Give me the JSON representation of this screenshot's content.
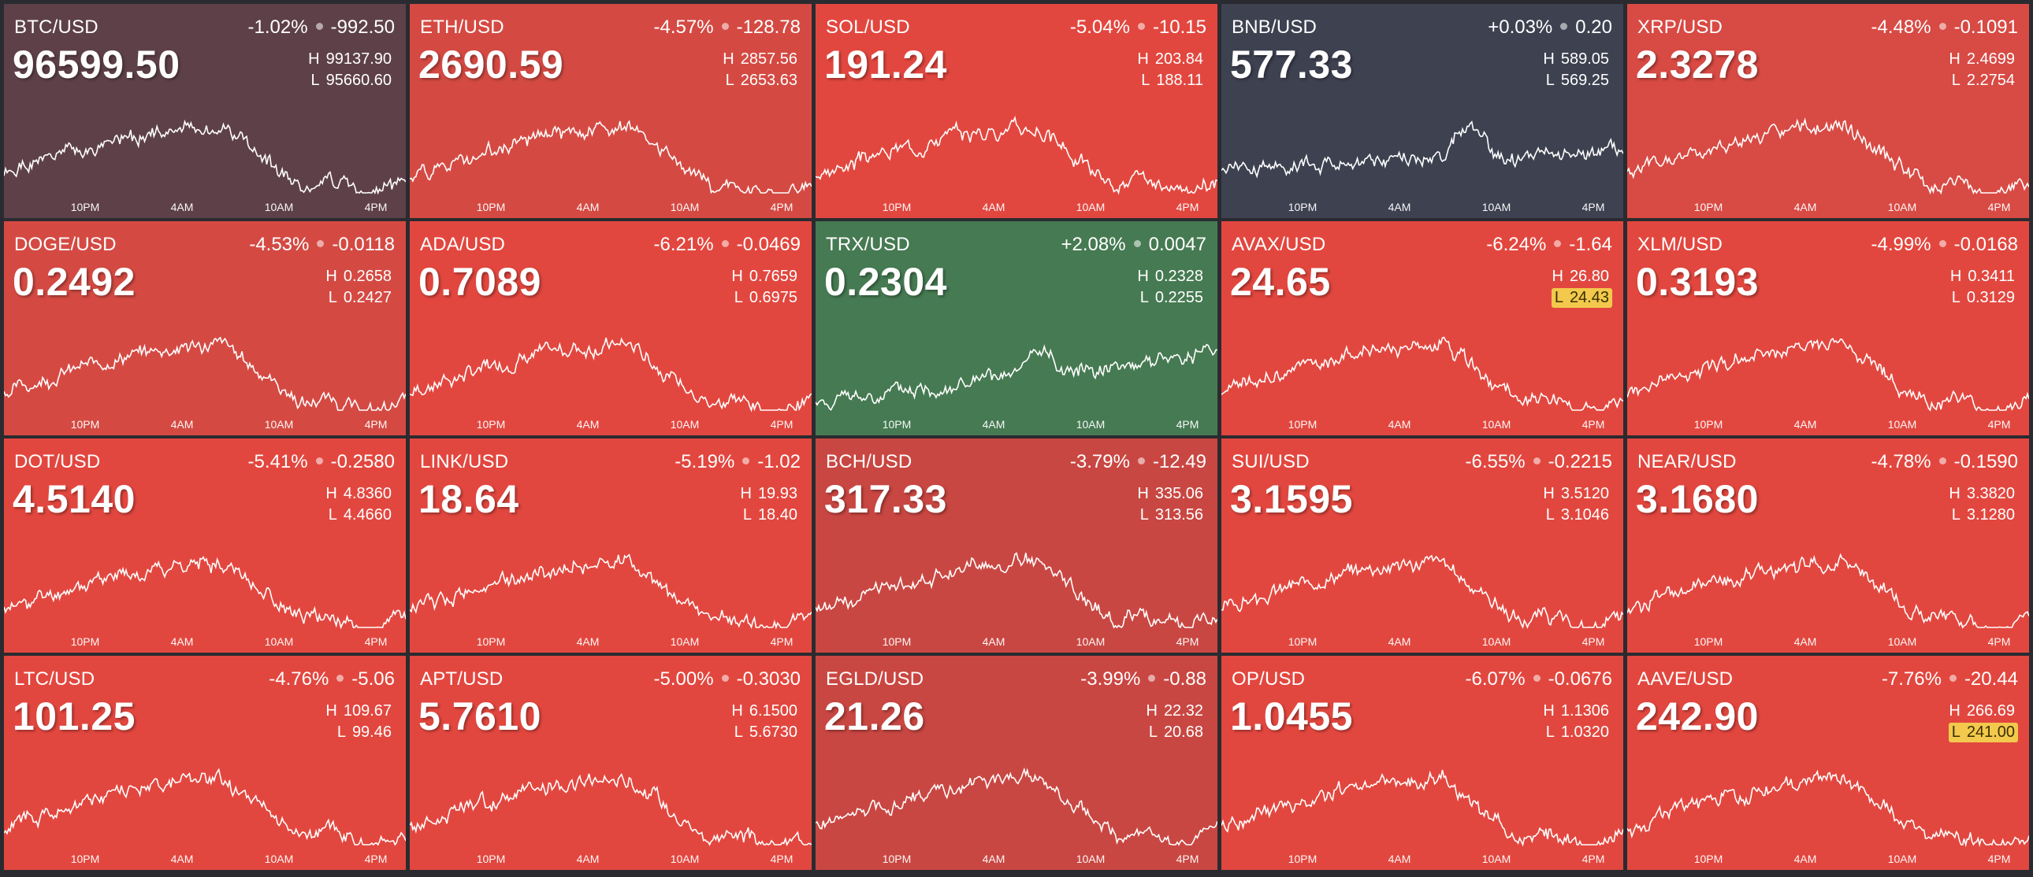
{
  "time_axis": [
    "10PM",
    "4AM",
    "10AM",
    "4PM"
  ],
  "colors": {
    "strong_down": "#e2473f",
    "moderate_down": "#c94742",
    "slight_down": "#5e4148",
    "flat": "#3e4150",
    "up": "#467a52",
    "low_flag": "#f2c94c"
  },
  "tiles": [
    {
      "pair": "BTC/USD",
      "change_pct": "-1.02%",
      "change_abs": "-992.50",
      "price": "96599.50",
      "high": "99137.90",
      "low": "95660.60",
      "color": "#5e4148",
      "low_flag": false,
      "trend": "hump",
      "seed": 1
    },
    {
      "pair": "ETH/USD",
      "change_pct": "-4.57%",
      "change_abs": "-128.78",
      "price": "2690.59",
      "high": "2857.56",
      "low": "2653.63",
      "color": "#d44a43",
      "low_flag": false,
      "trend": "hump",
      "seed": 2
    },
    {
      "pair": "SOL/USD",
      "change_pct": "-5.04%",
      "change_abs": "-10.15",
      "price": "191.24",
      "high": "203.84",
      "low": "188.11",
      "color": "#e2473f",
      "low_flag": false,
      "trend": "hump",
      "seed": 3
    },
    {
      "pair": "BNB/USD",
      "change_pct": "+0.03%",
      "change_abs": "0.20",
      "price": "577.33",
      "high": "589.05",
      "low": "569.25",
      "color": "#3e4150",
      "low_flag": false,
      "trend": "spike",
      "seed": 4
    },
    {
      "pair": "XRP/USD",
      "change_pct": "-4.48%",
      "change_abs": "-0.1091",
      "price": "2.3278",
      "high": "2.4699",
      "low": "2.2754",
      "color": "#d84a44",
      "low_flag": false,
      "trend": "hump",
      "seed": 5
    },
    {
      "pair": "DOGE/USD",
      "change_pct": "-4.53%",
      "change_abs": "-0.0118",
      "price": "0.2492",
      "high": "0.2658",
      "low": "0.2427",
      "color": "#d44a43",
      "low_flag": false,
      "trend": "hump",
      "seed": 6
    },
    {
      "pair": "ADA/USD",
      "change_pct": "-6.21%",
      "change_abs": "-0.0469",
      "price": "0.7089",
      "high": "0.7659",
      "low": "0.6975",
      "color": "#e2473f",
      "low_flag": false,
      "trend": "hump",
      "seed": 7
    },
    {
      "pair": "TRX/USD",
      "change_pct": "+2.08%",
      "change_abs": "0.0047",
      "price": "0.2304",
      "high": "0.2328",
      "low": "0.2255",
      "color": "#467a52",
      "low_flag": false,
      "trend": "rise",
      "seed": 8
    },
    {
      "pair": "AVAX/USD",
      "change_pct": "-6.24%",
      "change_abs": "-1.64",
      "price": "24.65",
      "high": "26.80",
      "low": "24.43",
      "color": "#e2473f",
      "low_flag": true,
      "trend": "hump",
      "seed": 9
    },
    {
      "pair": "XLM/USD",
      "change_pct": "-4.99%",
      "change_abs": "-0.0168",
      "price": "0.3193",
      "high": "0.3411",
      "low": "0.3129",
      "color": "#e2473f",
      "low_flag": false,
      "trend": "hump",
      "seed": 10
    },
    {
      "pair": "DOT/USD",
      "change_pct": "-5.41%",
      "change_abs": "-0.2580",
      "price": "4.5140",
      "high": "4.8360",
      "low": "4.4660",
      "color": "#e2473f",
      "low_flag": false,
      "trend": "hump",
      "seed": 11
    },
    {
      "pair": "LINK/USD",
      "change_pct": "-5.19%",
      "change_abs": "-1.02",
      "price": "18.64",
      "high": "19.93",
      "low": "18.40",
      "color": "#e2473f",
      "low_flag": false,
      "trend": "hump",
      "seed": 12
    },
    {
      "pair": "BCH/USD",
      "change_pct": "-3.79%",
      "change_abs": "-12.49",
      "price": "317.33",
      "high": "335.06",
      "low": "313.56",
      "color": "#c94742",
      "low_flag": false,
      "trend": "hump",
      "seed": 13
    },
    {
      "pair": "SUI/USD",
      "change_pct": "-6.55%",
      "change_abs": "-0.2215",
      "price": "3.1595",
      "high": "3.5120",
      "low": "3.1046",
      "color": "#e2473f",
      "low_flag": false,
      "trend": "hump",
      "seed": 14
    },
    {
      "pair": "NEAR/USD",
      "change_pct": "-4.78%",
      "change_abs": "-0.1590",
      "price": "3.1680",
      "high": "3.3820",
      "low": "3.1280",
      "color": "#e2473f",
      "low_flag": false,
      "trend": "hump",
      "seed": 15
    },
    {
      "pair": "LTC/USD",
      "change_pct": "-4.76%",
      "change_abs": "-5.06",
      "price": "101.25",
      "high": "109.67",
      "low": "99.46",
      "color": "#e2473f",
      "low_flag": false,
      "trend": "hump",
      "seed": 16
    },
    {
      "pair": "APT/USD",
      "change_pct": "-5.00%",
      "change_abs": "-0.3030",
      "price": "5.7610",
      "high": "6.1500",
      "low": "5.6730",
      "color": "#e2473f",
      "low_flag": false,
      "trend": "hump",
      "seed": 17
    },
    {
      "pair": "EGLD/USD",
      "change_pct": "-3.99%",
      "change_abs": "-0.88",
      "price": "21.26",
      "high": "22.32",
      "low": "20.68",
      "color": "#c94742",
      "low_flag": false,
      "trend": "hump",
      "seed": 18
    },
    {
      "pair": "OP/USD",
      "change_pct": "-6.07%",
      "change_abs": "-0.0676",
      "price": "1.0455",
      "high": "1.1306",
      "low": "1.0320",
      "color": "#e2473f",
      "low_flag": false,
      "trend": "hump",
      "seed": 19
    },
    {
      "pair": "AAVE/USD",
      "change_pct": "-7.76%",
      "change_abs": "-20.44",
      "price": "242.90",
      "high": "266.69",
      "low": "241.00",
      "color": "#e2473f",
      "low_flag": true,
      "trend": "hump",
      "seed": 20
    }
  ]
}
